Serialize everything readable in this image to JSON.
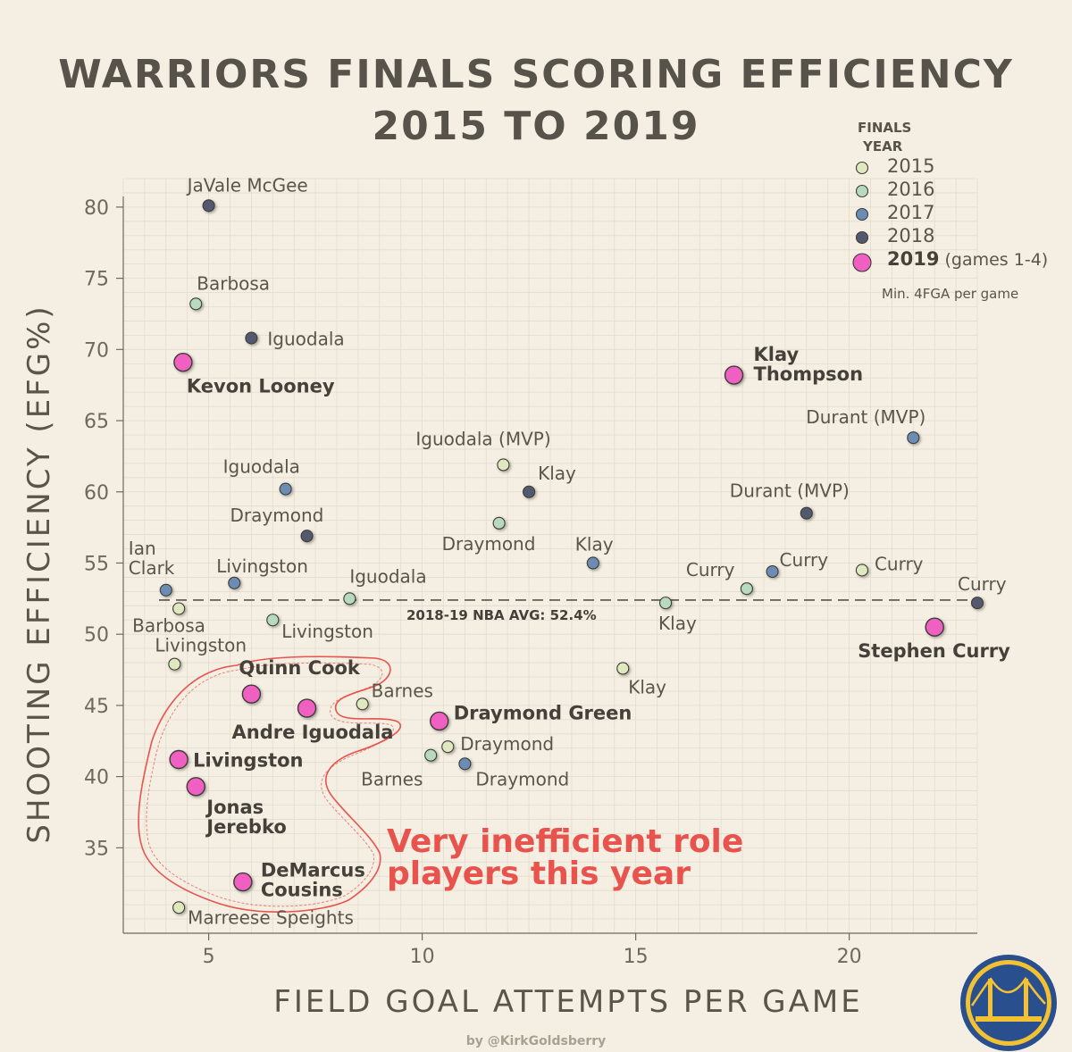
{
  "title_line1": "WARRIORS FINALS SCORING EFFICIENCY",
  "title_line2": "2015 TO 2019",
  "credit": "by @KirkGoldsberry",
  "legend": {
    "title_line1": "FINALS",
    "title_line2": "YEAR",
    "items": [
      {
        "year": "2015",
        "color": "#dfe8bf",
        "suffix": ""
      },
      {
        "year": "2016",
        "color": "#b7d9bf",
        "suffix": ""
      },
      {
        "year": "2017",
        "color": "#6d8cb3",
        "suffix": ""
      },
      {
        "year": "2018",
        "color": "#535a70",
        "suffix": ""
      },
      {
        "year": "2019",
        "color": "#f05fc2",
        "suffix": "(games 1-4)"
      }
    ],
    "note": "Min. 4FGA per game"
  },
  "logo": "warriors-bridge-logo",
  "chart_data": {
    "type": "scatter",
    "xlabel": "FIELD GOAL ATTEMPTS PER GAME",
    "ylabel": "SHOOTING EFFICIENCY (EFG%)",
    "xlim": [
      3,
      23
    ],
    "ylim": [
      29,
      82
    ],
    "xticks": [
      5,
      10,
      15,
      20
    ],
    "yticks": [
      35,
      40,
      45,
      50,
      55,
      60,
      65,
      70,
      75,
      80
    ],
    "grid": true,
    "reference_line": {
      "y": 52.4,
      "label": "2018-19 NBA AVG: 52.4%"
    },
    "annotation": {
      "line1": "Very inefficient role",
      "line2": "players this year"
    },
    "series": [
      {
        "name": "2015",
        "color": "#dfe8bf",
        "points": [
          {
            "x": 11.9,
            "y": 61.9,
            "label": "Iguodala (MVP)"
          },
          {
            "x": 8.6,
            "y": 45.1,
            "label": "Barnes"
          },
          {
            "x": 10.6,
            "y": 42.1,
            "label": "Draymond"
          },
          {
            "x": 14.7,
            "y": 47.6,
            "label": "Klay"
          },
          {
            "x": 20.3,
            "y": 54.5,
            "label": "Curry"
          },
          {
            "x": 4.3,
            "y": 51.8,
            "label": "Barbosa"
          },
          {
            "x": 4.2,
            "y": 47.9,
            "label": "Livingston"
          },
          {
            "x": 4.3,
            "y": 30.8,
            "label": "Marreese Speights"
          }
        ]
      },
      {
        "name": "2016",
        "color": "#b7d9bf",
        "points": [
          {
            "x": 4.7,
            "y": 73.2,
            "label": "Barbosa"
          },
          {
            "x": 11.8,
            "y": 57.8,
            "label": "Draymond"
          },
          {
            "x": 8.3,
            "y": 52.5,
            "label": "Iguodala"
          },
          {
            "x": 6.5,
            "y": 51.0,
            "label": "Livingston"
          },
          {
            "x": 17.6,
            "y": 53.2,
            "label": "Curry"
          },
          {
            "x": 15.7,
            "y": 52.2,
            "label": "Klay"
          },
          {
            "x": 10.2,
            "y": 41.5,
            "label": "Barnes"
          }
        ]
      },
      {
        "name": "2017",
        "color": "#6d8cb3",
        "points": [
          {
            "x": 6.8,
            "y": 60.2,
            "label": "Iguodala"
          },
          {
            "x": 4.0,
            "y": 53.1,
            "label": "Ian Clark"
          },
          {
            "x": 5.6,
            "y": 53.6,
            "label": "Livingston"
          },
          {
            "x": 14.0,
            "y": 55.0,
            "label": "Klay"
          },
          {
            "x": 18.2,
            "y": 54.4,
            "label": "Curry"
          },
          {
            "x": 21.5,
            "y": 63.8,
            "label": "Durant (MVP)"
          },
          {
            "x": 11.0,
            "y": 40.9,
            "label": "Draymond"
          }
        ]
      },
      {
        "name": "2018",
        "color": "#535a70",
        "points": [
          {
            "x": 5.0,
            "y": 80.1,
            "label": "JaVale McGee"
          },
          {
            "x": 6.0,
            "y": 70.8,
            "label": "Iguodala"
          },
          {
            "x": 7.3,
            "y": 56.9,
            "label": "Draymond"
          },
          {
            "x": 12.5,
            "y": 60.0,
            "label": "Klay"
          },
          {
            "x": 19.0,
            "y": 58.5,
            "label": "Durant (MVP)"
          },
          {
            "x": 23.0,
            "y": 52.2,
            "label": "Curry"
          }
        ]
      },
      {
        "name": "2019",
        "color": "#f05fc2",
        "points": [
          {
            "x": 4.4,
            "y": 69.1,
            "label": "Kevon Looney"
          },
          {
            "x": 17.3,
            "y": 68.2,
            "label": "Klay Thompson"
          },
          {
            "x": 22.0,
            "y": 50.5,
            "label": "Stephen Curry"
          },
          {
            "x": 6.0,
            "y": 45.8,
            "label": "Quinn Cook"
          },
          {
            "x": 7.3,
            "y": 44.8,
            "label": "Andre Iguodala"
          },
          {
            "x": 10.4,
            "y": 43.9,
            "label": "Draymond Green"
          },
          {
            "x": 4.3,
            "y": 41.2,
            "label": "Livingston"
          },
          {
            "x": 4.7,
            "y": 39.3,
            "label": "Jonas Jerebko"
          },
          {
            "x": 5.8,
            "y": 32.6,
            "label": "DeMarcus Cousins"
          }
        ]
      }
    ]
  }
}
